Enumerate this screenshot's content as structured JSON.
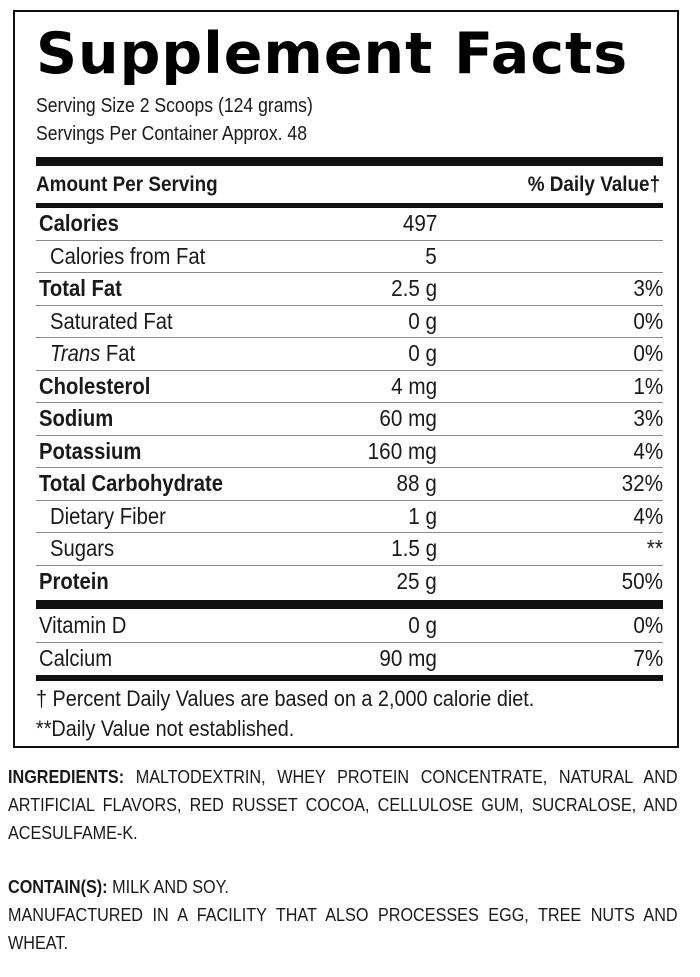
{
  "title": "Supplement Facts",
  "serving_size": "Serving Size 2 Scoops (124 grams)",
  "servings_per_container": "Servings Per Container Approx. 48",
  "header": {
    "amount_per_serving": "Amount Per Serving",
    "daily_value": "% Daily Value†"
  },
  "nutrients": [
    {
      "label": "Calories",
      "amount": "497",
      "dv": "",
      "bold": true
    },
    {
      "label": "Calories from Fat",
      "amount": "5",
      "dv": "",
      "bold": false
    },
    {
      "label": "Total Fat",
      "amount": "2.5 g",
      "dv": "3%",
      "bold": true
    },
    {
      "label": "Saturated Fat",
      "amount": "0 g",
      "dv": "0%",
      "bold": false
    },
    {
      "label_italic": "Trans",
      "label": " Fat",
      "amount": "0 g",
      "dv": "0%",
      "bold": false
    },
    {
      "label": "Cholesterol",
      "amount": "4 mg",
      "dv": "1%",
      "bold": true
    },
    {
      "label": "Sodium",
      "amount": "60 mg",
      "dv": "3%",
      "bold": true
    },
    {
      "label": "Potassium",
      "amount": "160 mg",
      "dv": "4%",
      "bold": true
    },
    {
      "label": "Total Carbohydrate",
      "amount": "88 g",
      "dv": "32%",
      "bold": true
    },
    {
      "label": "Dietary Fiber",
      "amount": "1 g",
      "dv": "4%",
      "bold": false
    },
    {
      "label": "Sugars",
      "amount": "1.5 g",
      "dv": "**",
      "bold": false
    },
    {
      "label": "Protein",
      "amount": "25 g",
      "dv": "50%",
      "bold": true
    }
  ],
  "vitamins": [
    {
      "label": "Vitamin D",
      "amount": "0 g",
      "dv": "0%"
    },
    {
      "label": "Calcium",
      "amount": "90 mg",
      "dv": "7%"
    }
  ],
  "footnotes": [
    "† Percent Daily Values are based on a 2,000 calorie diet.",
    "**Daily Value not established."
  ],
  "ingredients": {
    "label": "INGREDIENTS:",
    "text": " MALTODEXTRIN, WHEY PROTEIN CONCENTRATE, NATURAL AND ARTIFICIAL FLAVORS, RED RUSSET COCOA, CELLULOSE GUM, SUCRALOSE, AND ACESULFAME-K."
  },
  "contains": {
    "label": "CONTAIN(S):",
    "text": " MILK AND SOY."
  },
  "manufactured": "MANUFACTURED IN A FACILITY THAT ALSO PROCESSES EGG, TREE NUTS AND WHEAT."
}
